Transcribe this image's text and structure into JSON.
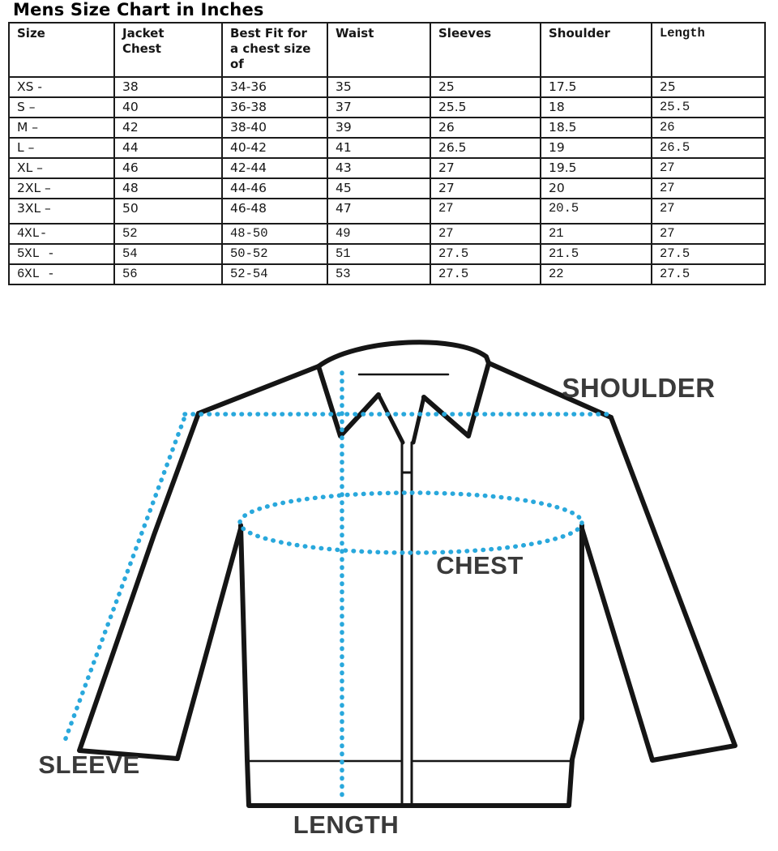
{
  "page": {
    "title": "Mens Size Chart in Inches"
  },
  "table": {
    "columns": [
      "Size",
      "Jacket\nChest",
      "Best Fit for\na chest size\nof",
      "Waist",
      "Sleeves",
      "Shoulder",
      "Length"
    ],
    "rows": [
      [
        "XS -",
        "38",
        "34-36",
        "35",
        "25",
        "17.5",
        "25"
      ],
      [
        "S –",
        "40",
        "36-38",
        "37",
        "25.5",
        "18",
        "25.5"
      ],
      [
        "M –",
        "42",
        "38-40",
        "39",
        "26",
        "18.5",
        "26"
      ],
      [
        "L –",
        "44",
        "40-42",
        "41",
        "26.5",
        "19",
        "26.5"
      ],
      [
        "XL –",
        "46",
        "42-44",
        "43",
        "27",
        "19.5",
        "27"
      ],
      [
        "2XL –",
        "48",
        "44-46",
        "45",
        "27",
        "20",
        "27"
      ],
      [
        "3XL –",
        "50",
        "46-48",
        "47",
        "27",
        "20.5",
        "27"
      ],
      [
        "4XL-",
        "52",
        "48-50",
        "49",
        "27",
        "21",
        "27"
      ],
      [
        "5XL -",
        "54",
        "50-52",
        "51",
        "27.5",
        "21.5",
        "27.5"
      ],
      [
        "6XL -",
        "56",
        "52-54",
        "53",
        "27.5",
        "22",
        "27.5"
      ]
    ]
  },
  "diagram": {
    "labels": {
      "shoulder": "SHOULDER",
      "chest": "CHEST",
      "sleeve": "SLEEVE",
      "length": "LENGTH"
    },
    "colors": {
      "measure_line": "#29a8dc",
      "outline": "#151515",
      "label_text": "#3a3a3a"
    }
  },
  "style_hints": {
    "mono_rows": [
      7,
      8,
      9
    ],
    "mono_cells": [
      [
        1,
        6
      ],
      [
        2,
        6
      ],
      [
        3,
        6
      ],
      [
        4,
        6
      ],
      [
        5,
        6
      ],
      [
        6,
        4
      ],
      [
        6,
        5
      ],
      [
        6,
        6
      ]
    ],
    "mono_header_cols": [
      6
    ],
    "tall_rows": [
      6
    ]
  }
}
